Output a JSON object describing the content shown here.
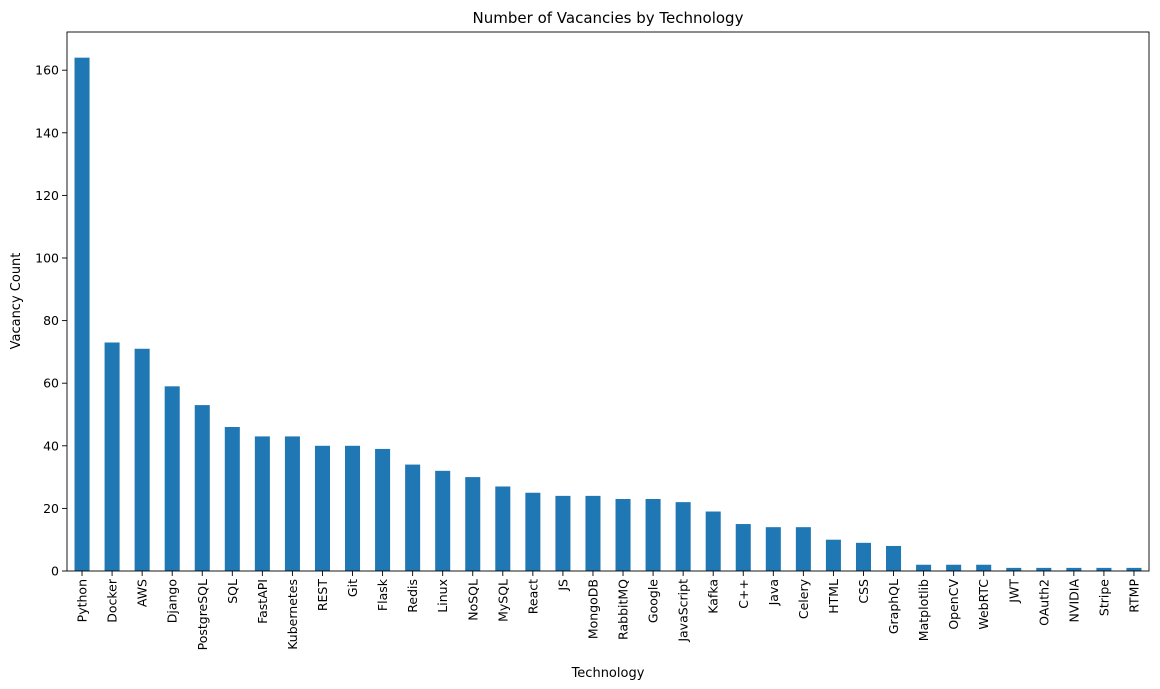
{
  "chart_data": {
    "type": "bar",
    "title": "Number of Vacancies by Technology",
    "xlabel": "Technology",
    "ylabel": "Vacancy Count",
    "ylim": [
      0,
      172.2
    ],
    "yticks": [
      0,
      20,
      40,
      60,
      80,
      100,
      120,
      140,
      160
    ],
    "grid": false,
    "bar_color": "#1f77b4",
    "categories": [
      "Python",
      "Docker",
      "AWS",
      "Django",
      "PostgreSQL",
      "SQL",
      "FastAPI",
      "Kubernetes",
      "REST",
      "Git",
      "Flask",
      "Redis",
      "Linux",
      "NoSQL",
      "MySQL",
      "React",
      "JS",
      "MongoDB",
      "RabbitMQ",
      "Google",
      "JavaScript",
      "Kafka",
      "C++",
      "Java",
      "Celery",
      "HTML",
      "CSS",
      "GraphQL",
      "Matplotlib",
      "OpenCV",
      "WebRTC",
      "JWT",
      "OAuth2",
      "NVIDIA",
      "Stripe",
      "RTMP"
    ],
    "values": [
      164,
      73,
      71,
      59,
      53,
      46,
      43,
      43,
      40,
      40,
      39,
      34,
      32,
      30,
      27,
      25,
      24,
      24,
      23,
      23,
      22,
      19,
      15,
      14,
      14,
      10,
      9,
      8,
      2,
      2,
      2,
      1,
      1,
      1,
      1,
      1
    ]
  }
}
